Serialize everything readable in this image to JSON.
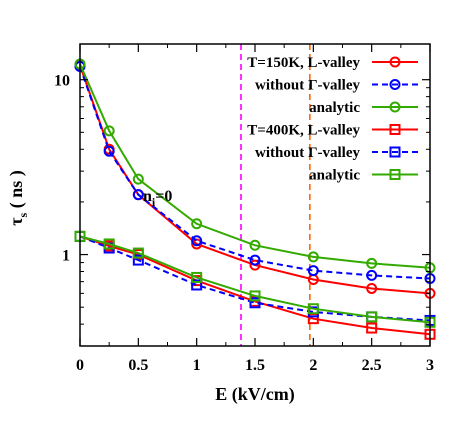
{
  "chart_data": {
    "type": "line",
    "xlabel": "E (kV/cm)",
    "ylabel_main": "τ",
    "ylabel_sub": "s",
    "ylabel_rest": " ( ns )",
    "xlim": [
      0,
      3
    ],
    "ylim": [
      0.3,
      16
    ],
    "yscale": "log",
    "grid": false,
    "legend_position": "top-right",
    "x_ticks": [
      {
        "value": 0,
        "label": "0"
      },
      {
        "value": 0.5,
        "label": "0.5"
      },
      {
        "value": 1,
        "label": "1"
      },
      {
        "value": 1.5,
        "label": "1.5"
      },
      {
        "value": 2,
        "label": "2"
      },
      {
        "value": 2.5,
        "label": "2.5"
      },
      {
        "value": 3,
        "label": "3"
      }
    ],
    "y_ticks": [
      {
        "value": 1,
        "label": "1"
      },
      {
        "value": 10,
        "label": "10"
      }
    ],
    "x": [
      0,
      0.25,
      0.5,
      1,
      1.5,
      2,
      2.5,
      3
    ],
    "series": [
      {
        "name": "T=150K, L-valley",
        "color": "#ff0000",
        "dash": "solid",
        "marker": "circle",
        "values": [
          12.1,
          4.0,
          2.2,
          1.15,
          0.87,
          0.72,
          0.64,
          0.6
        ]
      },
      {
        "name": "without Γ-valley",
        "color": "#0000ff",
        "dash": "dashed",
        "marker": "circle",
        "values": [
          11.9,
          3.9,
          2.2,
          1.2,
          0.93,
          0.81,
          0.76,
          0.73
        ]
      },
      {
        "name": "analytic",
        "color": "#33aa00",
        "dash": "solid",
        "marker": "circle",
        "values": [
          12.3,
          5.1,
          2.7,
          1.5,
          1.13,
          0.97,
          0.89,
          0.84
        ]
      },
      {
        "name": "T=400K, L-valley",
        "color": "#ff0000",
        "dash": "solid",
        "marker": "square",
        "values": [
          1.27,
          1.12,
          1.0,
          0.71,
          0.54,
          0.43,
          0.38,
          0.35
        ]
      },
      {
        "name": "without Γ-valley",
        "color": "#0000ff",
        "dash": "dashed",
        "marker": "square",
        "values": [
          1.27,
          1.09,
          0.93,
          0.67,
          0.53,
          0.47,
          0.44,
          0.42
        ]
      },
      {
        "name": "analytic",
        "color": "#33aa00",
        "dash": "solid",
        "marker": "square",
        "values": [
          1.27,
          1.15,
          1.02,
          0.74,
          0.58,
          0.49,
          0.44,
          0.41
        ]
      }
    ],
    "vertical_lines": [
      {
        "x": 1.38,
        "color": "#ff00ff",
        "dash": "dashed"
      },
      {
        "x": 1.97,
        "color": "#ff6600",
        "dash": "dashed"
      }
    ],
    "annotation": {
      "main": "n",
      "sub": "i",
      "rest": "=0",
      "x": 0.18,
      "y": 0.48
    }
  }
}
